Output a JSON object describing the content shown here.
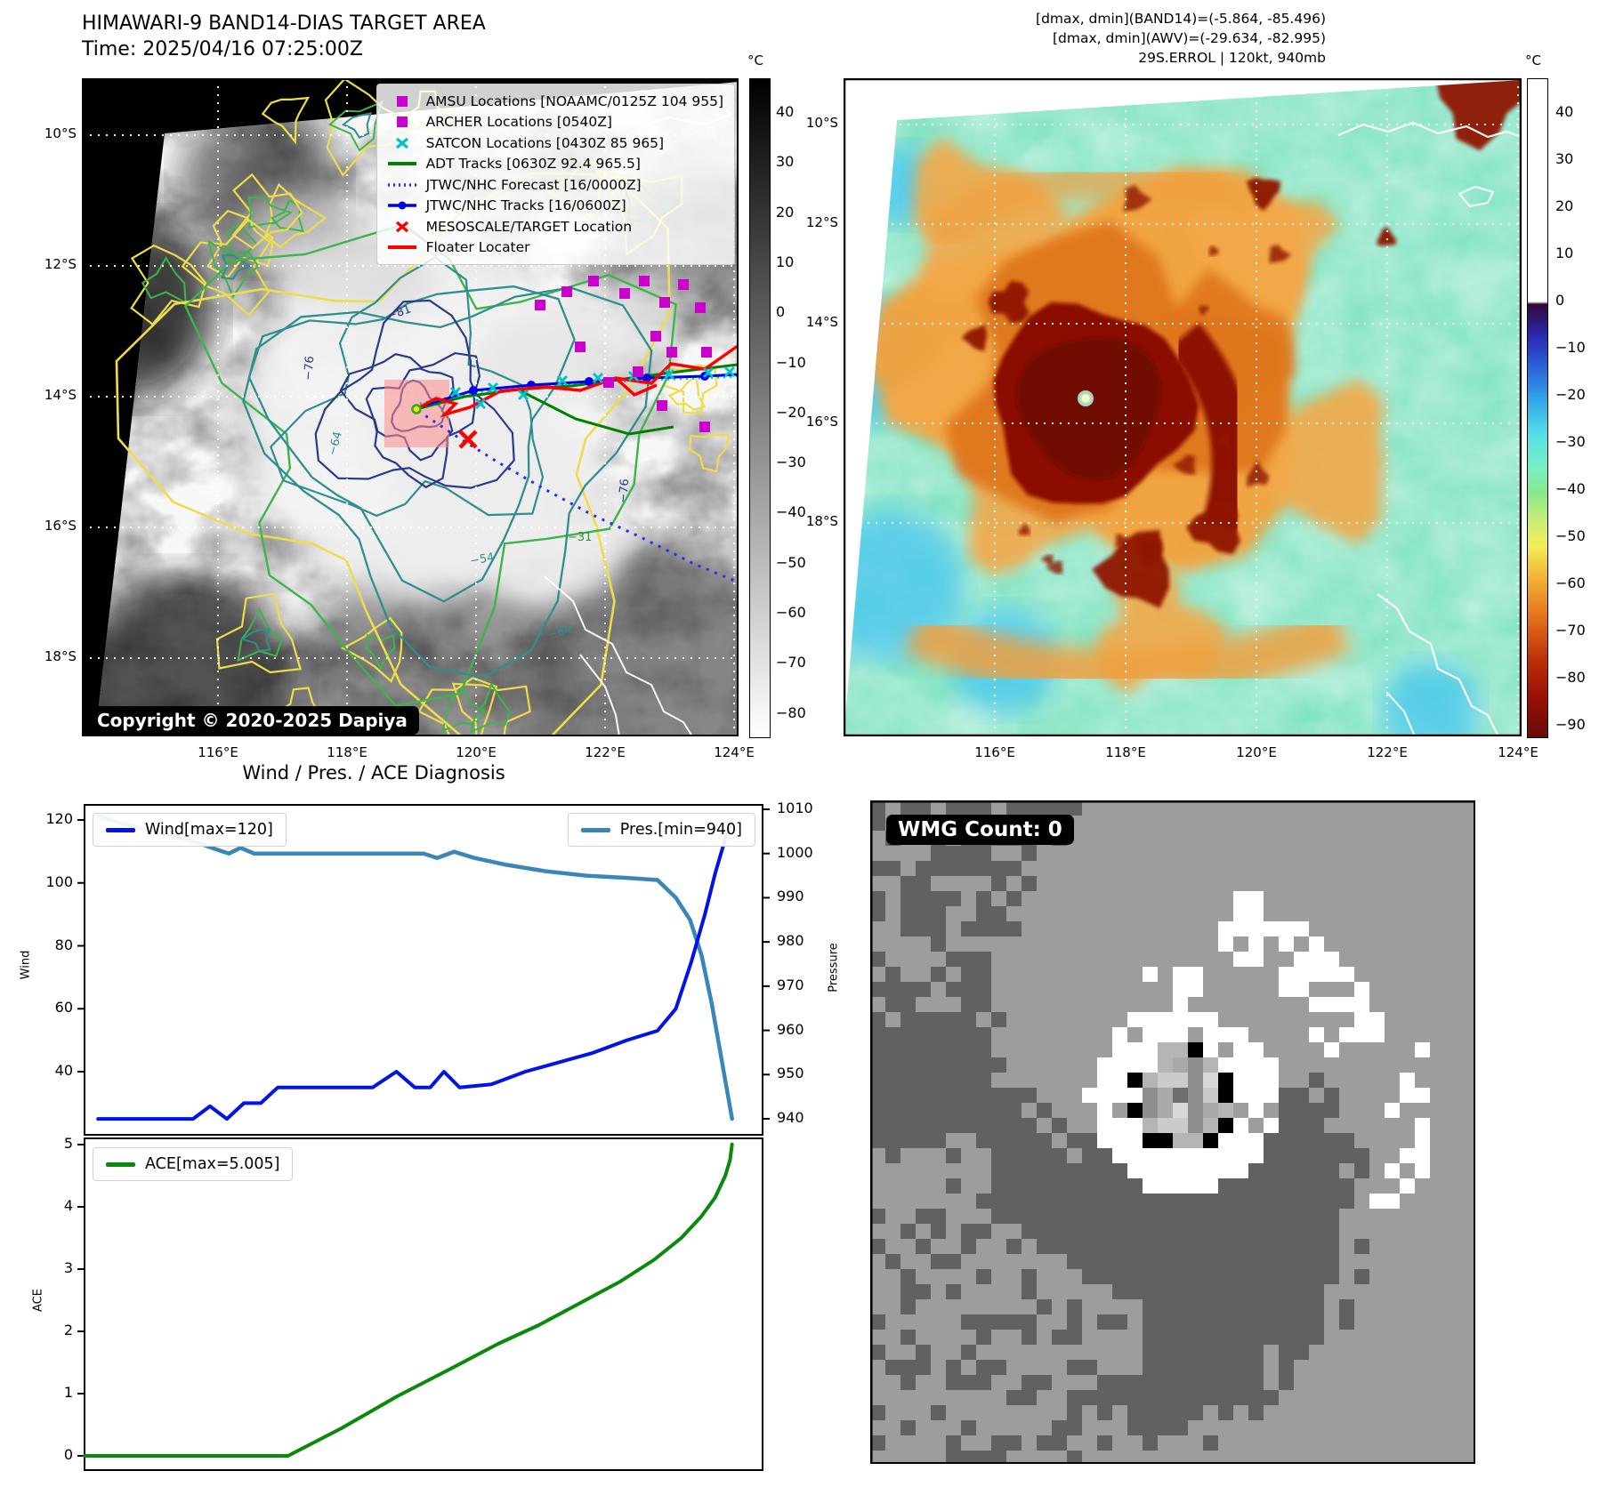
{
  "header": {
    "title_line1": "HIMAWARI-9 BAND14-DIAS TARGET AREA",
    "title_line2": "Time: 2025/04/16 07:25:00Z",
    "info_line1": "[dmax, dmin](BAND14)=(-5.864, -85.496)",
    "info_line2": "[dmax, dmin](AWV)=(-29.634, -82.995)",
    "info_line3": "29S.ERROL | 120kt, 940mb"
  },
  "left_map": {
    "lat_labels": [
      "10°S",
      "12°S",
      "14°S",
      "16°S",
      "18°S"
    ],
    "lon_labels": [
      "116°E",
      "118°E",
      "120°E",
      "122°E",
      "124°E"
    ],
    "contour_labels": [
      "−81",
      "−76",
      "−64",
      "−64",
      "−76",
      "−54",
      "−31"
    ],
    "copyright": "Copyright © 2020-2025 Dapiya",
    "legend": [
      {
        "marker": "square",
        "color": "#cc00cc",
        "label": "AMSU Locations [NOAAMC/0125Z 104 955]"
      },
      {
        "marker": "square",
        "color": "#cc00cc",
        "label": "ARCHER Locations [0540Z]"
      },
      {
        "marker": "x",
        "color": "#00c2cb",
        "label": "SATCON Locations [0430Z 85 965]"
      },
      {
        "marker": "line",
        "color": "#008000",
        "label": "ADT Tracks [0630Z 92.4 965.5]"
      },
      {
        "marker": "dotted-line",
        "color": "#2a2aff",
        "label": "JTWC/NHC Forecast [16/0000Z]"
      },
      {
        "marker": "line-dot",
        "color": "#0000ee",
        "label": "JTWC/NHC Tracks [16/0600Z]"
      },
      {
        "marker": "x",
        "color": "#ff0000",
        "label": "MESOSCALE/TARGET Location"
      },
      {
        "marker": "line",
        "color": "#ff0000",
        "label": "Floater Locater"
      }
    ],
    "colorbar": {
      "unit": "°C",
      "ticks": [
        "40",
        "30",
        "20",
        "10",
        "0",
        "−10",
        "−20",
        "−30",
        "−40",
        "−50",
        "−60",
        "−70",
        "−80"
      ]
    }
  },
  "right_map": {
    "lat_labels": [
      "10°S",
      "12°S",
      "14°S",
      "16°S",
      "18°S"
    ],
    "lon_labels": [
      "116°E",
      "118°E",
      "120°E",
      "122°E",
      "124°E"
    ],
    "colorbar": {
      "unit": "°C",
      "ticks": [
        "40",
        "30",
        "20",
        "10",
        "0",
        "−10",
        "−20",
        "−30",
        "−40",
        "−50",
        "−60",
        "−70",
        "−80",
        "−90"
      ]
    }
  },
  "wmg": {
    "badge": "WMG Count: 0"
  },
  "chart_data": [
    {
      "type": "line",
      "title": "Wind / Pres. / ACE Diagnosis",
      "xlabel": "",
      "x_range": [
        0,
        1
      ],
      "ylabel_left": "Wind",
      "ylabel_right": "Pressure",
      "yticks_left": [
        120,
        100,
        80,
        60,
        40
      ],
      "yticks_right": [
        1010,
        1000,
        990,
        980,
        970,
        960,
        950,
        940
      ],
      "legend_position": {
        "wind": "upper left",
        "pres": "upper right"
      },
      "series": [
        {
          "name": "Wind[max=120]",
          "color": "#0013e8",
          "axis": "left",
          "points": [
            [
              0.02,
              25
            ],
            [
              0.16,
              25
            ],
            [
              0.185,
              29
            ],
            [
              0.21,
              25
            ],
            [
              0.235,
              30
            ],
            [
              0.26,
              30
            ],
            [
              0.285,
              35
            ],
            [
              0.425,
              35
            ],
            [
              0.46,
              40
            ],
            [
              0.487,
              35
            ],
            [
              0.51,
              35
            ],
            [
              0.53,
              40
            ],
            [
              0.553,
              35
            ],
            [
              0.6,
              36
            ],
            [
              0.65,
              40
            ],
            [
              0.7,
              43
            ],
            [
              0.75,
              46
            ],
            [
              0.8,
              50
            ],
            [
              0.845,
              53
            ],
            [
              0.872,
              60
            ],
            [
              0.895,
              75
            ],
            [
              0.915,
              90
            ],
            [
              0.93,
              103
            ],
            [
              0.945,
              114
            ],
            [
              0.955,
              120
            ]
          ]
        },
        {
          "name": "Pres.[min=940]",
          "color": "#3b86b8",
          "axis": "right",
          "points": [
            [
              0.02,
              1008.5
            ],
            [
              0.05,
              1007
            ],
            [
              0.09,
              1005.5
            ],
            [
              0.12,
              1004.5
            ],
            [
              0.15,
              1003.2
            ],
            [
              0.175,
              1002
            ],
            [
              0.197,
              1000.8
            ],
            [
              0.213,
              1000
            ],
            [
              0.23,
              1001.3
            ],
            [
              0.25,
              1000
            ],
            [
              0.5,
              1000
            ],
            [
              0.52,
              999
            ],
            [
              0.545,
              1000.4
            ],
            [
              0.575,
              999
            ],
            [
              0.62,
              997.5
            ],
            [
              0.68,
              996
            ],
            [
              0.74,
              995
            ],
            [
              0.8,
              994.5
            ],
            [
              0.845,
              994
            ],
            [
              0.872,
              990
            ],
            [
              0.893,
              985
            ],
            [
              0.91,
              977
            ],
            [
              0.925,
              966
            ],
            [
              0.94,
              953
            ],
            [
              0.955,
              940
            ]
          ]
        }
      ]
    },
    {
      "type": "line",
      "ylabel_left": "ACE",
      "yticks_left": [
        5,
        4,
        3,
        2,
        1,
        0
      ],
      "legend_position": {
        "ace": "upper left"
      },
      "series": [
        {
          "name": "ACE[max=5.005]",
          "color": "#0a8a0a",
          "axis": "left",
          "points": [
            [
              0,
              0
            ],
            [
              0.3,
              0
            ],
            [
              0.38,
              0.45
            ],
            [
              0.46,
              0.95
            ],
            [
              0.54,
              1.4
            ],
            [
              0.61,
              1.8
            ],
            [
              0.67,
              2.1
            ],
            [
              0.73,
              2.45
            ],
            [
              0.79,
              2.8
            ],
            [
              0.84,
              3.15
            ],
            [
              0.88,
              3.5
            ],
            [
              0.91,
              3.85
            ],
            [
              0.93,
              4.15
            ],
            [
              0.945,
              4.5
            ],
            [
              0.952,
              4.75
            ],
            [
              0.955,
              5.005
            ]
          ]
        }
      ]
    }
  ]
}
